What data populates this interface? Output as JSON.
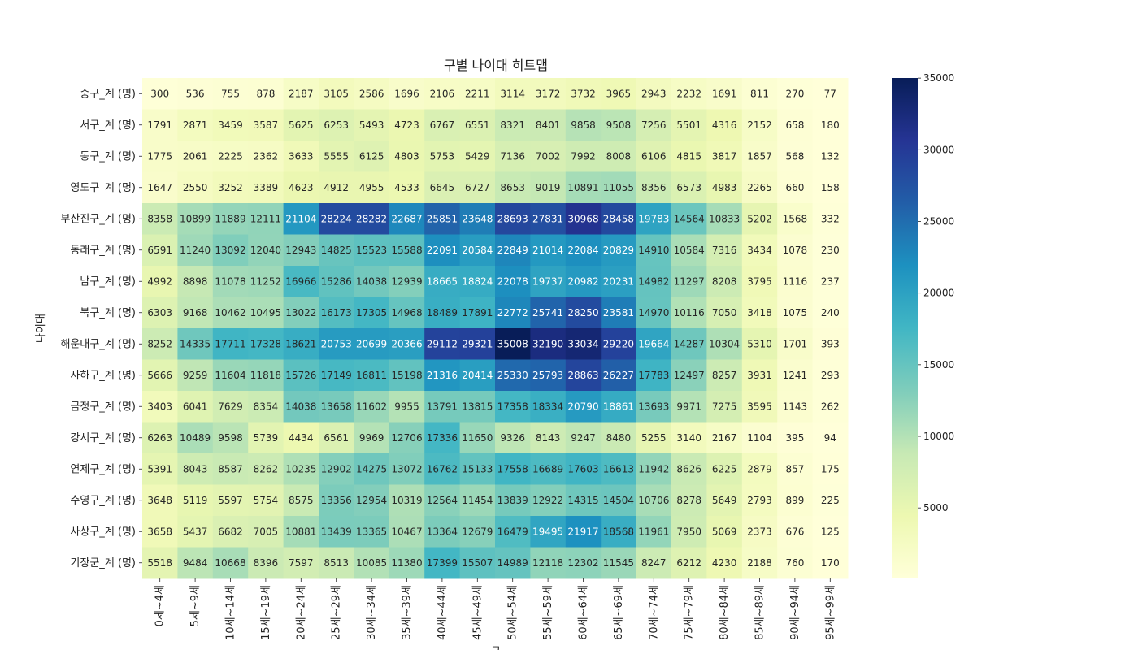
{
  "chart_data": {
    "type": "heatmap",
    "title": "구별 나이대 히트맵",
    "ylabel": "나이대",
    "xlabel": "구",
    "colormap": "YlGnBu",
    "colorbar": {
      "min": 77,
      "max": 35008,
      "ticks": [
        "5000",
        "10000",
        "15000",
        "20000",
        "25000",
        "30000",
        "35000"
      ]
    },
    "rows": [
      "중구_계 (명)",
      "서구_계 (명)",
      "동구_계 (명)",
      "영도구_계 (명)",
      "부산진구_계 (명)",
      "동래구_계 (명)",
      "남구_계 (명)",
      "북구_계 (명)",
      "해운대구_계 (명)",
      "사하구_계 (명)",
      "금정구_계 (명)",
      "강서구_계 (명)",
      "연제구_계 (명)",
      "수영구_계 (명)",
      "사상구_계 (명)",
      "기장군_계 (명)"
    ],
    "columns": [
      "0세~4세",
      "5세~9세",
      "10세~14세",
      "15세~19세",
      "20세~24세",
      "25세~29세",
      "30세~34세",
      "35세~39세",
      "40세~44세",
      "45세~49세",
      "50세~54세",
      "55세~59세",
      "60세~64세",
      "65세~69세",
      "70세~74세",
      "75세~79세",
      "80세~84세",
      "85세~89세",
      "90세~94세",
      "95세~99세"
    ],
    "values": [
      [
        300,
        536,
        755,
        878,
        2187,
        3105,
        2586,
        1696,
        2106,
        2211,
        3114,
        3172,
        3732,
        3965,
        2943,
        2232,
        1691,
        811,
        270,
        77
      ],
      [
        1791,
        2871,
        3459,
        3587,
        5625,
        6253,
        5493,
        4723,
        6767,
        6551,
        8321,
        8401,
        9858,
        9508,
        7256,
        5501,
        4316,
        2152,
        658,
        180
      ],
      [
        1775,
        2061,
        2225,
        2362,
        3633,
        5555,
        6125,
        4803,
        5753,
        5429,
        7136,
        7002,
        7992,
        8008,
        6106,
        4815,
        3817,
        1857,
        568,
        132
      ],
      [
        1647,
        2550,
        3252,
        3389,
        4623,
        4912,
        4955,
        4533,
        6645,
        6727,
        8653,
        9019,
        10891,
        11055,
        8356,
        6573,
        4983,
        2265,
        660,
        158
      ],
      [
        8358,
        10899,
        11889,
        12111,
        21104,
        28224,
        28282,
        22687,
        25851,
        23648,
        28693,
        27831,
        30968,
        28458,
        19783,
        14564,
        10833,
        5202,
        1568,
        332
      ],
      [
        6591,
        11240,
        13092,
        12040,
        12943,
        14825,
        15523,
        15588,
        22091,
        20584,
        22849,
        21014,
        22084,
        20829,
        14910,
        10584,
        7316,
        3434,
        1078,
        230
      ],
      [
        4992,
        8898,
        11078,
        11252,
        16966,
        15286,
        14038,
        12939,
        18665,
        18824,
        22078,
        19737,
        20982,
        20231,
        14982,
        11297,
        8208,
        3795,
        1116,
        237
      ],
      [
        6303,
        9168,
        10462,
        10495,
        13022,
        16173,
        17305,
        14968,
        18489,
        17891,
        22772,
        25741,
        28250,
        23581,
        14970,
        10116,
        7050,
        3418,
        1075,
        240
      ],
      [
        8252,
        14335,
        17711,
        17328,
        18621,
        20753,
        20699,
        20366,
        29112,
        29321,
        35008,
        32190,
        33034,
        29220,
        19664,
        14287,
        10304,
        5310,
        1701,
        393
      ],
      [
        5666,
        9259,
        11604,
        11818,
        15726,
        17149,
        16811,
        15198,
        21316,
        20414,
        25330,
        25793,
        28863,
        26227,
        17783,
        12497,
        8257,
        3931,
        1241,
        293
      ],
      [
        3403,
        6041,
        7629,
        8354,
        14038,
        13658,
        11602,
        9955,
        13791,
        13815,
        17358,
        18334,
        20790,
        18861,
        13693,
        9971,
        7275,
        3595,
        1143,
        262
      ],
      [
        6263,
        10489,
        9598,
        5739,
        4434,
        6561,
        9969,
        12706,
        17336,
        11650,
        9326,
        8143,
        9247,
        8480,
        5255,
        3140,
        2167,
        1104,
        395,
        94
      ],
      [
        5391,
        8043,
        8587,
        8262,
        10235,
        12902,
        14275,
        13072,
        16762,
        15133,
        17558,
        16689,
        17603,
        16613,
        11942,
        8626,
        6225,
        2879,
        857,
        175
      ],
      [
        3648,
        5119,
        5597,
        5754,
        8575,
        13356,
        12954,
        10319,
        12564,
        11454,
        13839,
        12922,
        14315,
        14504,
        10706,
        8278,
        5649,
        2793,
        899,
        225
      ],
      [
        3658,
        5437,
        6682,
        7005,
        10881,
        13439,
        13365,
        10467,
        13364,
        12679,
        16479,
        19495,
        21917,
        18568,
        11961,
        7950,
        5069,
        2373,
        676,
        125
      ],
      [
        5518,
        9484,
        10668,
        8396,
        7597,
        8513,
        10085,
        11380,
        17399,
        15507,
        14989,
        12118,
        12302,
        11545,
        8247,
        6212,
        4230,
        2188,
        760,
        170
      ]
    ]
  }
}
